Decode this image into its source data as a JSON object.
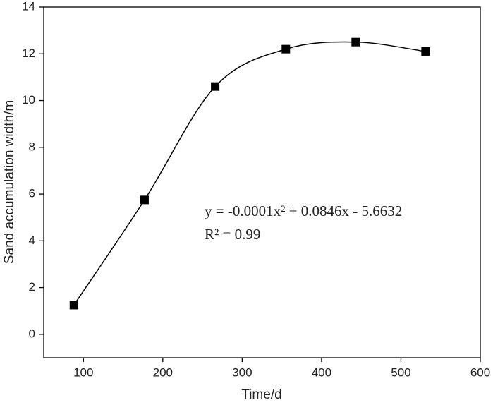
{
  "chart_data": {
    "type": "line",
    "x_label": "Time/d",
    "y_label": "Sand accumulation width/m",
    "x": [
      88,
      177,
      266,
      355,
      443,
      531
    ],
    "series": [
      {
        "color": "#000000",
        "values": [
          1.25,
          5.75,
          10.6,
          12.2,
          12.5,
          12.1
        ]
      }
    ],
    "smooth": true,
    "marker": "square",
    "xlim": [
      50,
      600
    ],
    "xticks": [
      100,
      200,
      300,
      400,
      500,
      600
    ],
    "ylim": [
      -1,
      14
    ],
    "yticks": [
      0,
      2,
      4,
      6,
      8,
      10,
      12,
      14
    ],
    "annotations": [
      "y = -0.0001x² + 0.0846x - 5.6632",
      "R² = 0.99"
    ]
  }
}
